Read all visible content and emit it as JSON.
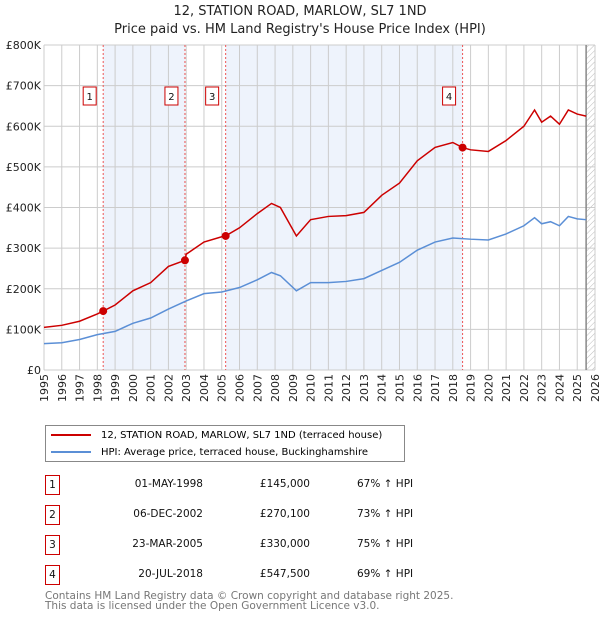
{
  "chart_data": {
    "type": "line",
    "title": "12, STATION ROAD, MARLOW, SL7 1ND",
    "subtitle": "Price paid vs. HM Land Registry's House Price Index (HPI)",
    "xlim": [
      1995,
      2026
    ],
    "ylim": [
      0,
      800000
    ],
    "yticks": [
      0,
      100000,
      200000,
      300000,
      400000,
      500000,
      600000,
      700000,
      800000
    ],
    "ytick_labels": [
      "£0",
      "£100K",
      "£200K",
      "£300K",
      "£400K",
      "£500K",
      "£600K",
      "£700K",
      "£800K"
    ],
    "xticks": [
      "1995",
      "1996",
      "1997",
      "1998",
      "1999",
      "2000",
      "2001",
      "2002",
      "2003",
      "2004",
      "2005",
      "2006",
      "2007",
      "2008",
      "2009",
      "2010",
      "2011",
      "2012",
      "2013",
      "2014",
      "2015",
      "2016",
      "2017",
      "2018",
      "2019",
      "2020",
      "2021",
      "2022",
      "2023",
      "2024",
      "2025",
      "2026"
    ],
    "grid": true,
    "legend_placement": "below",
    "series": [
      {
        "name": "12, STATION ROAD, MARLOW, SL7 1ND (terraced house)",
        "color": "#cc0000",
        "x": [
          1995,
          1996,
          1997,
          1998,
          1998.33,
          1999,
          2000,
          2001,
          2002,
          2002.93,
          2003,
          2004,
          2005,
          2005.22,
          2006,
          2007,
          2007.8,
          2008.3,
          2009.2,
          2010,
          2011,
          2012,
          2013,
          2014,
          2015,
          2016,
          2017,
          2018,
          2018.55,
          2019,
          2020,
          2021,
          2022,
          2022.6,
          2023,
          2023.5,
          2024,
          2024.5,
          2025,
          2025.5
        ],
        "y": [
          105000,
          110000,
          120000,
          138000,
          145000,
          160000,
          195000,
          215000,
          255000,
          270100,
          285000,
          315000,
          328000,
          330000,
          350000,
          385000,
          410000,
          400000,
          330000,
          370000,
          378000,
          380000,
          388000,
          430000,
          460000,
          515000,
          548000,
          560000,
          547500,
          542000,
          538000,
          565000,
          600000,
          640000,
          610000,
          625000,
          605000,
          640000,
          630000,
          625000
        ]
      },
      {
        "name": "HPI: Average price, terraced house, Buckinghamshire",
        "color": "#5b8fd6",
        "x": [
          1995,
          1996,
          1997,
          1998,
          1999,
          2000,
          2001,
          2002,
          2003,
          2004,
          2005,
          2006,
          2007,
          2007.8,
          2008.3,
          2009.2,
          2010,
          2011,
          2012,
          2013,
          2014,
          2015,
          2016,
          2017,
          2018,
          2019,
          2020,
          2021,
          2022,
          2022.6,
          2023,
          2023.5,
          2024,
          2024.5,
          2025,
          2025.5
        ],
        "y": [
          65000,
          67000,
          75000,
          87000,
          95000,
          115000,
          128000,
          150000,
          170000,
          188000,
          192000,
          203000,
          222000,
          240000,
          232000,
          195000,
          215000,
          215000,
          218000,
          225000,
          245000,
          265000,
          295000,
          315000,
          325000,
          322000,
          320000,
          335000,
          355000,
          375000,
          360000,
          365000,
          355000,
          378000,
          372000,
          370000
        ]
      }
    ],
    "sales": [
      {
        "id": "1",
        "x": 1998.33,
        "date": "01-MAY-1998",
        "price": 145000,
        "price_label": "£145,000",
        "hpi": "67% ↑ HPI"
      },
      {
        "id": "2",
        "x": 2002.93,
        "date": "06-DEC-2002",
        "price": 270100,
        "price_label": "£270,100",
        "hpi": "73% ↑ HPI"
      },
      {
        "id": "3",
        "x": 2005.22,
        "date": "23-MAR-2005",
        "price": 330000,
        "price_label": "£330,000",
        "hpi": "75% ↑ HPI"
      },
      {
        "id": "4",
        "x": 2018.55,
        "date": "20-JUL-2018",
        "price": 547500,
        "price_label": "£547,500",
        "hpi": "69% ↑ HPI"
      }
    ],
    "shaded_ranges": [
      [
        1998.33,
        2002.93
      ],
      [
        2005.22,
        2018.55
      ]
    ],
    "hatched_from": 2025.5
  },
  "legend": {
    "red": "12, STATION ROAD, MARLOW, SL7 1ND (terraced house)",
    "blue": "HPI: Average price, terraced house, Buckinghamshire"
  },
  "footer": {
    "line1": "Contains HM Land Registry data © Crown copyright and database right 2025.",
    "line2": "This data is licensed under the Open Government Licence v3.0."
  }
}
